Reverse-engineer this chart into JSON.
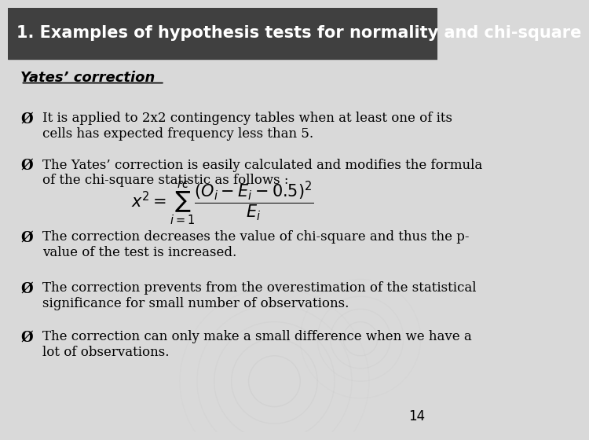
{
  "title": "1. Examples of hypothesis tests for normality and chi-square",
  "subtitle": "Yates’ correction",
  "bg_color": "#d9d9d9",
  "title_fontsize": 15,
  "body_fontsize": 12,
  "bullet_char": "Ø",
  "bullets": [
    "It is applied to 2x2 contingency tables when at least one of its\ncells has expected frequency less than 5.",
    "The Yates’ correction is easily calculated and modifies the formula\nof the chi-square statistic as follows :",
    "The correction decreases the value of chi-square and thus the p-\nvalue of the test is increased.",
    "The correction prevents from the overestimation of the statistical\nsignificance for small number of observations.",
    "The correction can only make a small difference when we have a\nlot of observations."
  ],
  "page_number": "14"
}
